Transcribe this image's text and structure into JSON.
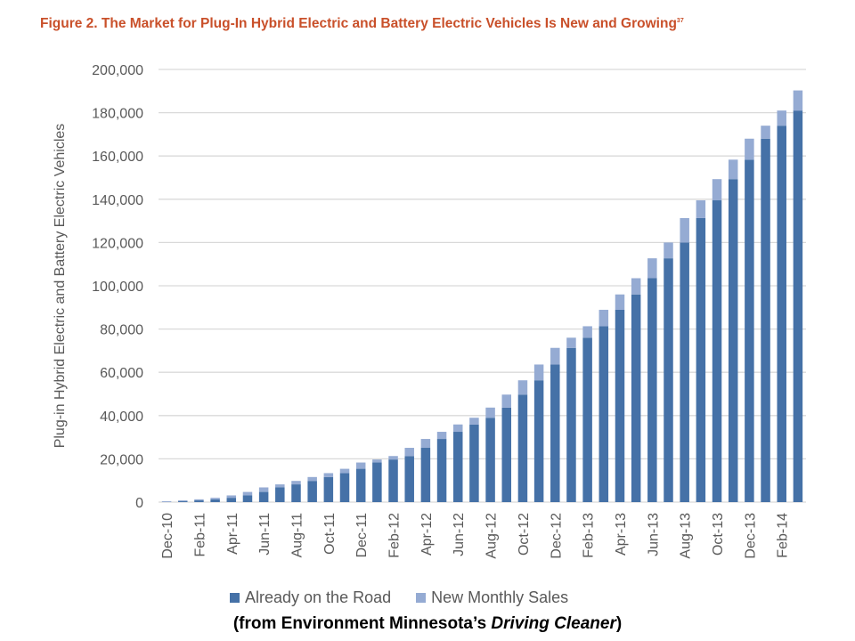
{
  "title": "Figure 2. The Market for Plug-In Hybrid Electric and Battery Electric Vehicles Is New and Growing",
  "title_footnote": "37",
  "caption": {
    "prefix": "(from Environment Minnesota’s ",
    "italic": "Driving Cleaner",
    "suffix": ")"
  },
  "colors": {
    "title": "#c9502a",
    "already": "#4571a7",
    "new": "#95abd3",
    "grid": "#d9d9d9"
  },
  "chart_data": {
    "type": "bar",
    "stacked": true,
    "ylabel": "Plug-in Hybrid Electric and Battery Electric Vehicles",
    "xlabel": "",
    "ylim": [
      0,
      200000
    ],
    "yticks": [
      0,
      20000,
      40000,
      60000,
      80000,
      100000,
      120000,
      140000,
      160000,
      180000,
      200000
    ],
    "ytick_labels": [
      "0",
      "20,000",
      "40,000",
      "60,000",
      "80,000",
      "100,000",
      "120,000",
      "140,000",
      "160,000",
      "180,000",
      "200,000"
    ],
    "grid": true,
    "legend": "bottom",
    "categories": [
      "Dec-10",
      "Jan-11",
      "Feb-11",
      "Mar-11",
      "Apr-11",
      "May-11",
      "Jun-11",
      "Jul-11",
      "Aug-11",
      "Sep-11",
      "Oct-11",
      "Nov-11",
      "Dec-11",
      "Jan-12",
      "Feb-12",
      "Mar-12",
      "Apr-12",
      "May-12",
      "Jun-12",
      "Jul-12",
      "Aug-12",
      "Sep-12",
      "Oct-12",
      "Nov-12",
      "Dec-12",
      "Jan-13",
      "Feb-13",
      "Mar-13",
      "Apr-13",
      "May-13",
      "Jun-13",
      "Jul-13",
      "Aug-13",
      "Sep-13",
      "Oct-13",
      "Nov-13",
      "Dec-13",
      "Jan-14",
      "Feb-14",
      "Mar-14"
    ],
    "xtick_labels": [
      "Dec-10",
      "Feb-11",
      "Apr-11",
      "Jun-11",
      "Aug-11",
      "Oct-11",
      "Dec-11",
      "Feb-12",
      "Apr-12",
      "Jun-12",
      "Aug-12",
      "Oct-12",
      "Dec-12",
      "Feb-13",
      "Apr-13",
      "Jun-13",
      "Aug-13",
      "Oct-13",
      "Dec-13",
      "Feb-14"
    ],
    "series": [
      {
        "name": "Already on the Road",
        "values": [
          0,
          400,
          800,
          1300,
          2000,
          3100,
          4700,
          6800,
          8200,
          9800,
          11600,
          13400,
          15400,
          18300,
          19700,
          21300,
          25100,
          29200,
          32500,
          35900,
          39000,
          43700,
          49700,
          56300,
          63600,
          71300,
          76000,
          81300,
          88900,
          96000,
          103500,
          112700,
          120000,
          131300,
          139500,
          149300,
          158300,
          168000,
          174000,
          181000
        ]
      },
      {
        "name": "New Monthly Sales",
        "values": [
          400,
          400,
          500,
          700,
          1100,
          1600,
          2100,
          1400,
          1600,
          1800,
          1800,
          2000,
          2900,
          1400,
          1600,
          3800,
          4100,
          3300,
          3400,
          3100,
          4700,
          6000,
          6600,
          7300,
          7700,
          4700,
          5300,
          7600,
          7100,
          7500,
          9200,
          7300,
          11300,
          8200,
          9800,
          9000,
          9700,
          6000,
          7000,
          9300
        ]
      }
    ]
  }
}
